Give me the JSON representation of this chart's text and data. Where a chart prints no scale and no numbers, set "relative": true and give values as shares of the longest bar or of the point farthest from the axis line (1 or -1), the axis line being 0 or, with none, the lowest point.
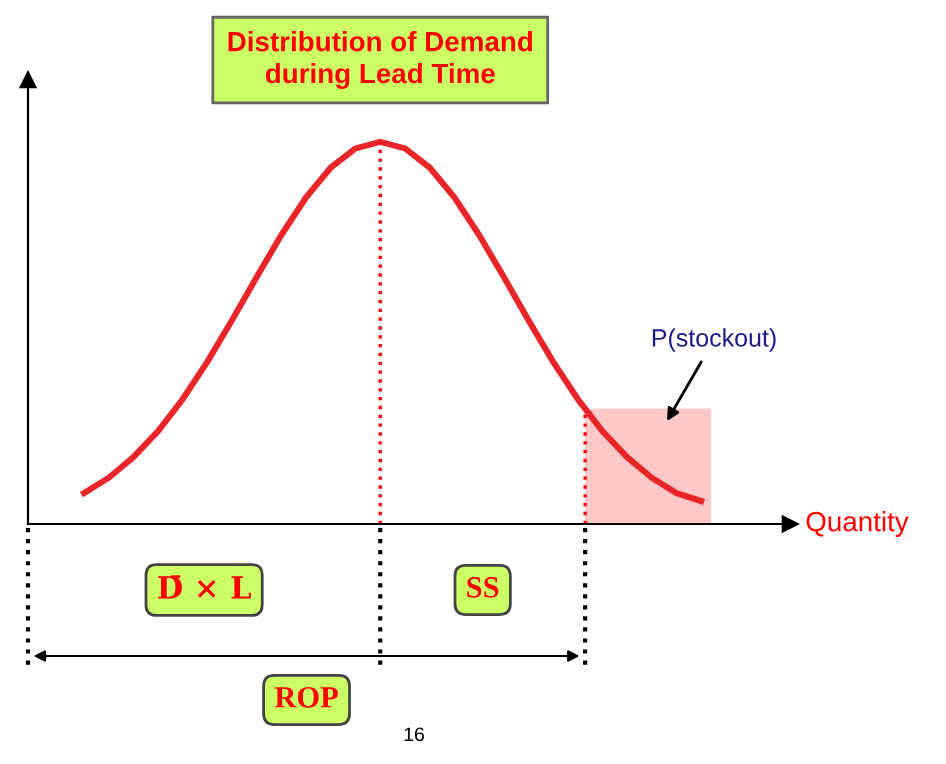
{
  "chart_data": {
    "type": "line",
    "relative": true,
    "title": "Distribution of Demand\nduring Lead Time",
    "xlabel": "Quantity",
    "categories": [
      null,
      null,
      null,
      null,
      null,
      null,
      null,
      null,
      null,
      null,
      null,
      null,
      null,
      null,
      null,
      null,
      null,
      null,
      null,
      null,
      null,
      null,
      null,
      null,
      null,
      null
    ],
    "series": [
      {
        "color": "#e8262a",
        "values": [
          0.081,
          0.121,
          0.175,
          0.243,
          0.327,
          0.425,
          0.534,
          0.647,
          0.757,
          0.855,
          0.933,
          0.983,
          1.0,
          0.983,
          0.933,
          0.855,
          0.757,
          0.647,
          0.534,
          0.425,
          0.327,
          0.243,
          0.175,
          0.121,
          0.081,
          0.06
        ]
      }
    ],
    "annotations": [
      "P(stockout)",
      "D̄ × L",
      "SS",
      "ROP",
      "16"
    ],
    "grid": false,
    "marker": "none",
    "line_style": "solid"
  }
}
